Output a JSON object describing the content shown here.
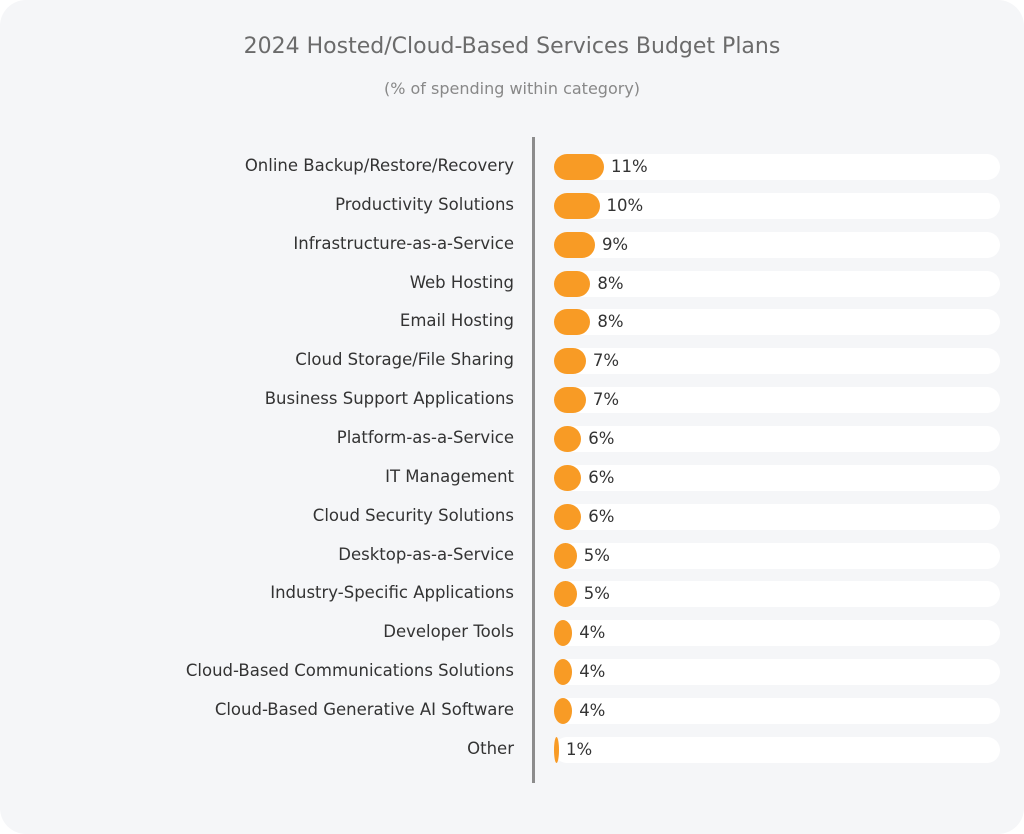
{
  "chart_data": {
    "type": "bar",
    "orientation": "horizontal",
    "title": "2024 Hosted/Cloud-Based Services Budget Plans",
    "subtitle": "(% of spending within category)",
    "categories": [
      "Online Backup/Restore/Recovery",
      "Productivity Solutions",
      "Infrastructure-as-a-Service",
      "Web Hosting",
      "Email Hosting",
      "Cloud Storage/File Sharing",
      "Business Support Applications",
      "Platform-as-a-Service",
      "IT Management",
      "Cloud Security Solutions",
      "Desktop-as-a-Service",
      "Industry-Specific Applications",
      "Developer Tools",
      "Cloud-Based Communications Solutions",
      "Cloud-Based Generative AI Software",
      "Other"
    ],
    "values": [
      11,
      10,
      9,
      8,
      8,
      7,
      7,
      6,
      6,
      6,
      5,
      5,
      4,
      4,
      4,
      1
    ],
    "labels": [
      "11%",
      "10%",
      "9%",
      "8%",
      "8%",
      "7%",
      "7%",
      "6%",
      "6%",
      "6%",
      "5%",
      "5%",
      "4%",
      "4%",
      "4%",
      "1%"
    ],
    "unit": "%",
    "grid": false,
    "legend": "none",
    "colors": {
      "bar": "#f89b25",
      "track": "#ffffff",
      "background": "#f5f6f8"
    }
  }
}
